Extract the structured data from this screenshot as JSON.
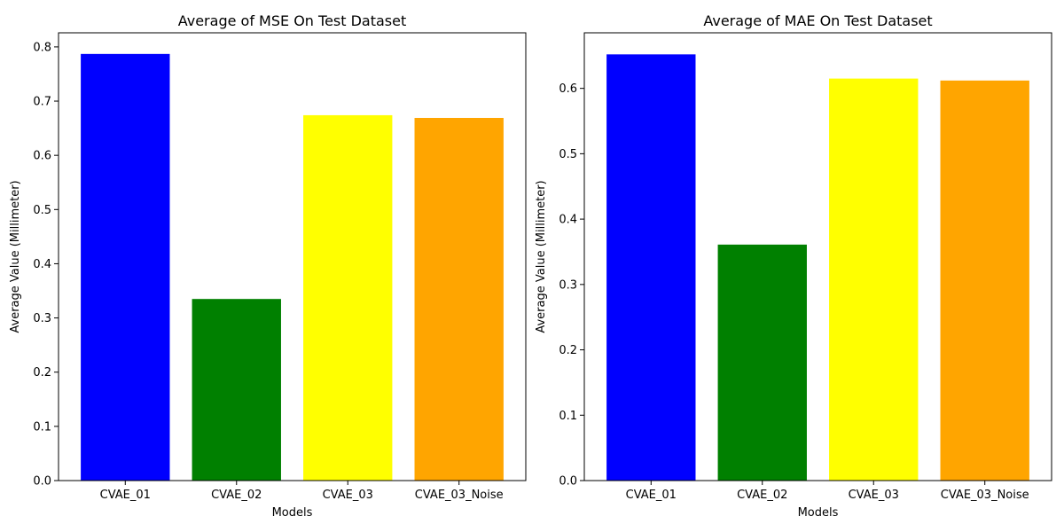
{
  "chart_data": [
    {
      "type": "bar",
      "title": "Average of MSE On Test Dataset",
      "xlabel": "Models",
      "ylabel": "Average Value (Millimeter)",
      "categories": [
        "CVAE_01",
        "CVAE_02",
        "CVAE_03",
        "CVAE_03_Noise"
      ],
      "values": [
        0.787,
        0.335,
        0.674,
        0.669
      ],
      "colors": [
        "#0000ff",
        "#008000",
        "#ffff00",
        "#ffa500"
      ],
      "ylim": [
        0,
        0.826
      ],
      "yticks": [
        0.0,
        0.1,
        0.2,
        0.3,
        0.4,
        0.5,
        0.6,
        0.7,
        0.8
      ],
      "ytick_labels": [
        "0.0",
        "0.1",
        "0.2",
        "0.3",
        "0.4",
        "0.5",
        "0.6",
        "0.7",
        "0.8"
      ],
      "grid": false
    },
    {
      "type": "bar",
      "title": "Average of MAE On Test Dataset",
      "xlabel": "Models",
      "ylabel": "Average Value (Millimeter)",
      "categories": [
        "CVAE_01",
        "CVAE_02",
        "CVAE_03",
        "CVAE_03_Noise"
      ],
      "values": [
        0.652,
        0.361,
        0.615,
        0.612
      ],
      "colors": [
        "#0000ff",
        "#008000",
        "#ffff00",
        "#ffa500"
      ],
      "ylim": [
        0,
        0.685
      ],
      "yticks": [
        0.0,
        0.1,
        0.2,
        0.3,
        0.4,
        0.5,
        0.6
      ],
      "ytick_labels": [
        "0.0",
        "0.1",
        "0.2",
        "0.3",
        "0.4",
        "0.5",
        "0.6"
      ],
      "grid": false
    }
  ]
}
